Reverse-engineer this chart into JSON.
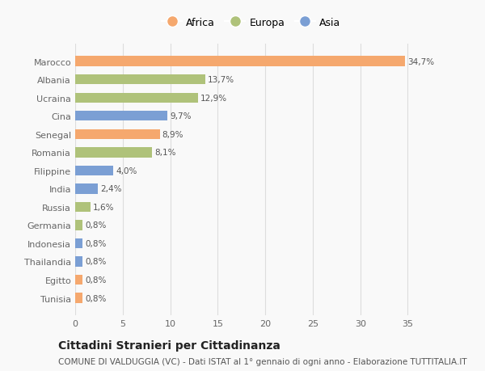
{
  "categories": [
    "Tunisia",
    "Egitto",
    "Thailandia",
    "Indonesia",
    "Germania",
    "Russia",
    "India",
    "Filippine",
    "Romania",
    "Senegal",
    "Cina",
    "Ucraina",
    "Albania",
    "Marocco"
  ],
  "values": [
    0.8,
    0.8,
    0.8,
    0.8,
    0.8,
    1.6,
    2.4,
    4.0,
    8.1,
    8.9,
    9.7,
    12.9,
    13.7,
    34.7
  ],
  "labels": [
    "0,8%",
    "0,8%",
    "0,8%",
    "0,8%",
    "0,8%",
    "1,6%",
    "2,4%",
    "4,0%",
    "8,1%",
    "8,9%",
    "9,7%",
    "12,9%",
    "13,7%",
    "34,7%"
  ],
  "colors": [
    "#f5a86e",
    "#f5a86e",
    "#7b9fd4",
    "#7b9fd4",
    "#afc27a",
    "#afc27a",
    "#7b9fd4",
    "#7b9fd4",
    "#afc27a",
    "#f5a86e",
    "#7b9fd4",
    "#afc27a",
    "#afc27a",
    "#f5a86e"
  ],
  "legend_labels": [
    "Africa",
    "Europa",
    "Asia"
  ],
  "legend_colors": [
    "#f5a86e",
    "#afc27a",
    "#7b9fd4"
  ],
  "title": "Cittadini Stranieri per Cittadinanza",
  "subtitle": "COMUNE DI VALDUGGIA (VC) - Dati ISTAT al 1° gennaio di ogni anno - Elaborazione TUTTITALIA.IT",
  "xlim": [
    0,
    37
  ],
  "xticks": [
    0,
    5,
    10,
    15,
    20,
    25,
    30,
    35
  ],
  "background_color": "#f9f9f9",
  "grid_color": "#dddddd",
  "title_fontsize": 10,
  "subtitle_fontsize": 7.5,
  "label_fontsize": 7.5,
  "tick_fontsize": 8,
  "legend_fontsize": 9
}
